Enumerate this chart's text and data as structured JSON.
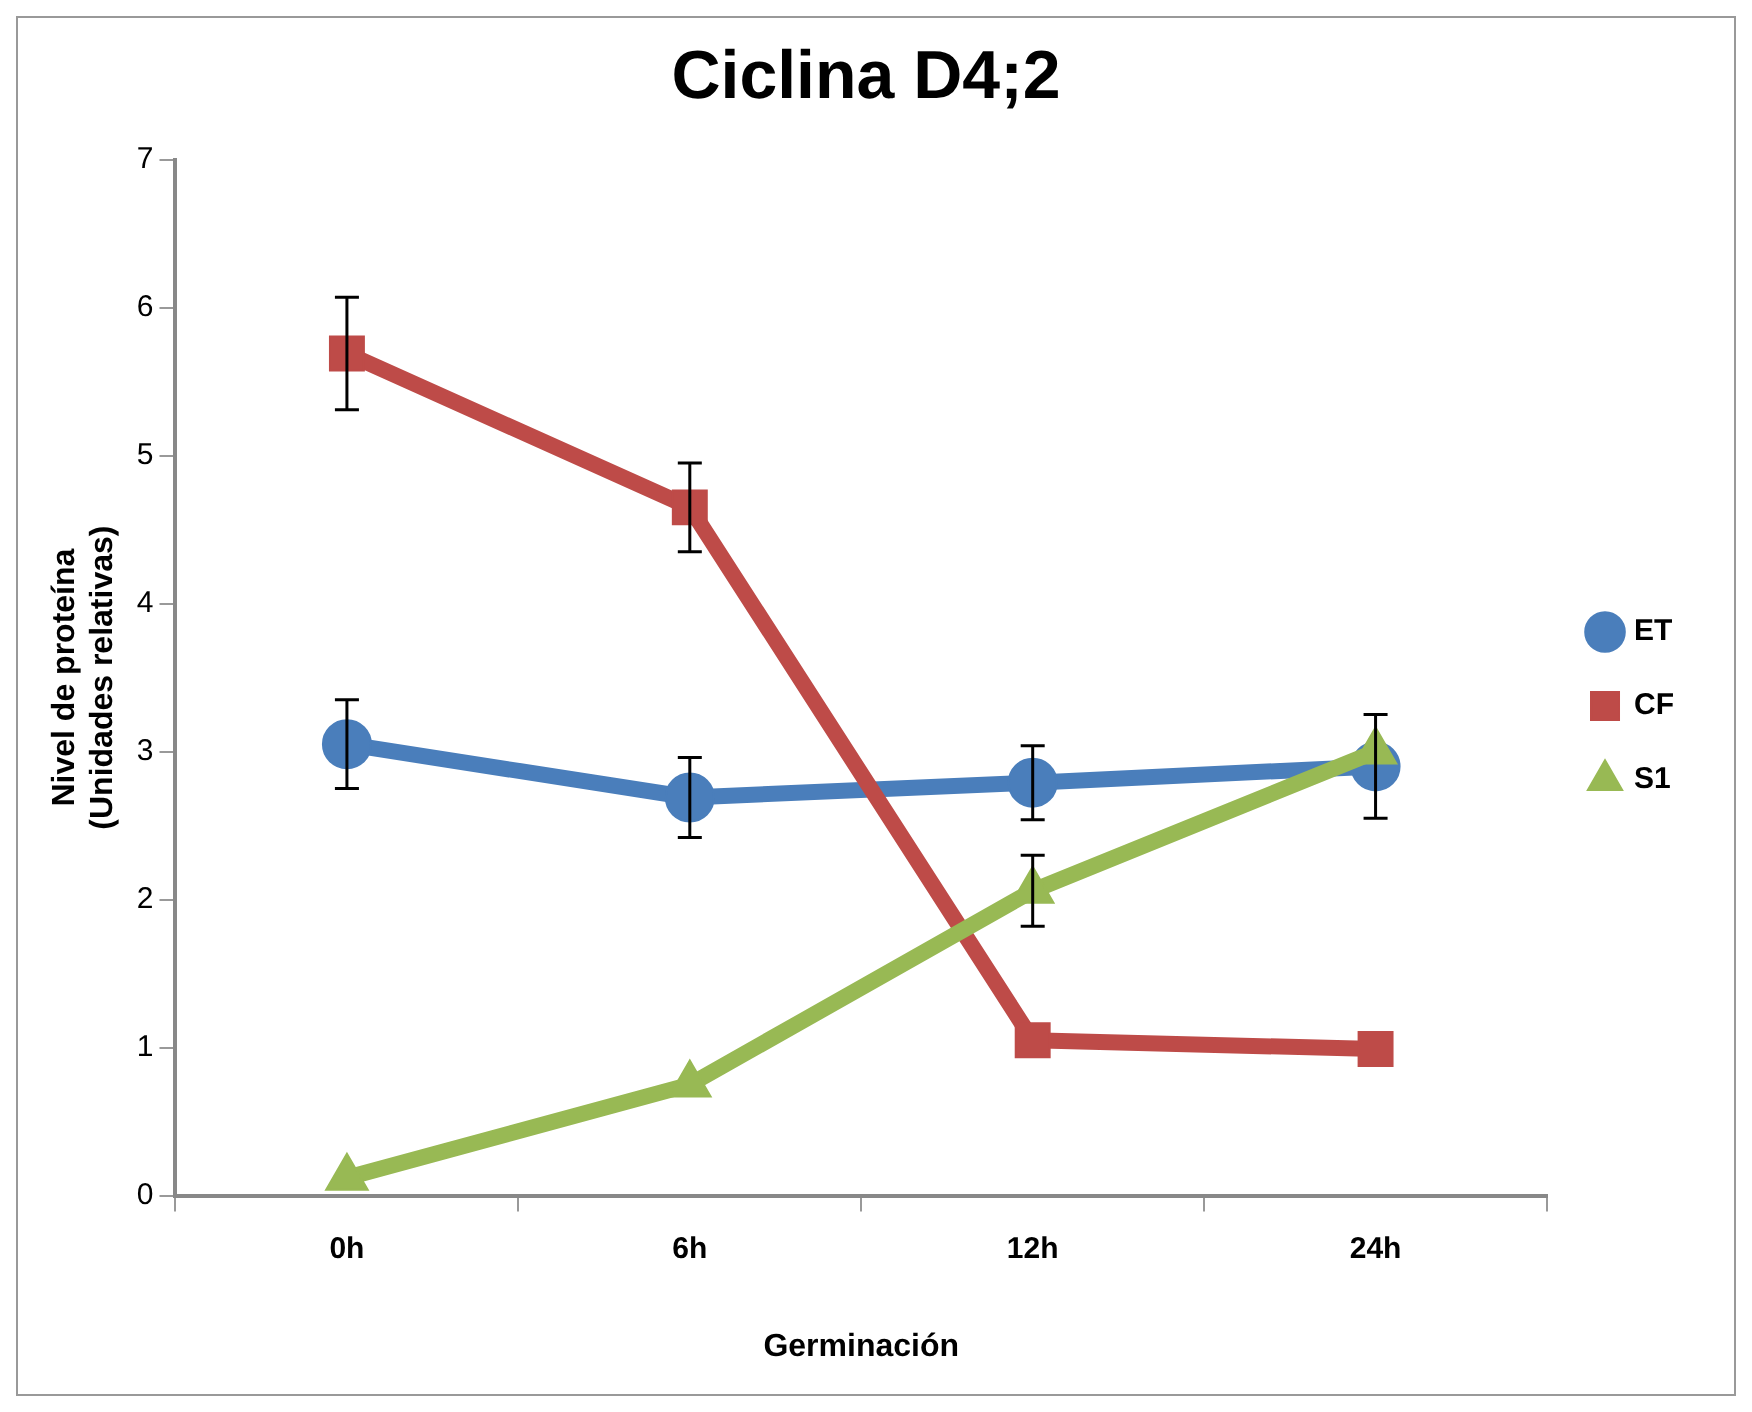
{
  "chart_data": {
    "type": "line",
    "title": "Ciclina D4;2",
    "xlabel": "Germinación",
    "ylabel": "Nivel de proteína\n(Unidades relativas)",
    "categories": [
      "0h",
      "6h",
      "12h",
      "24h"
    ],
    "series": [
      {
        "name": "ET",
        "color": "#4a7ebb",
        "marker": "circle",
        "values": [
          3.05,
          2.69,
          2.79,
          2.9
        ],
        "errors": [
          0.3,
          0.27,
          0.25,
          0.35
        ]
      },
      {
        "name": "CF",
        "color": "#be4b48",
        "marker": "square",
        "values": [
          5.69,
          4.65,
          1.05,
          0.99
        ],
        "errors": [
          0.38,
          0.3,
          null,
          null
        ]
      },
      {
        "name": "S1",
        "color": "#98b954",
        "marker": "triangle",
        "values": [
          0.12,
          0.75,
          2.06,
          3.0
        ],
        "errors": [
          null,
          null,
          0.24,
          null
        ]
      }
    ],
    "ylim": [
      0,
      7
    ],
    "yticks": [
      0,
      1,
      2,
      3,
      4,
      5,
      6,
      7
    ],
    "grid": false,
    "legend": "right"
  }
}
